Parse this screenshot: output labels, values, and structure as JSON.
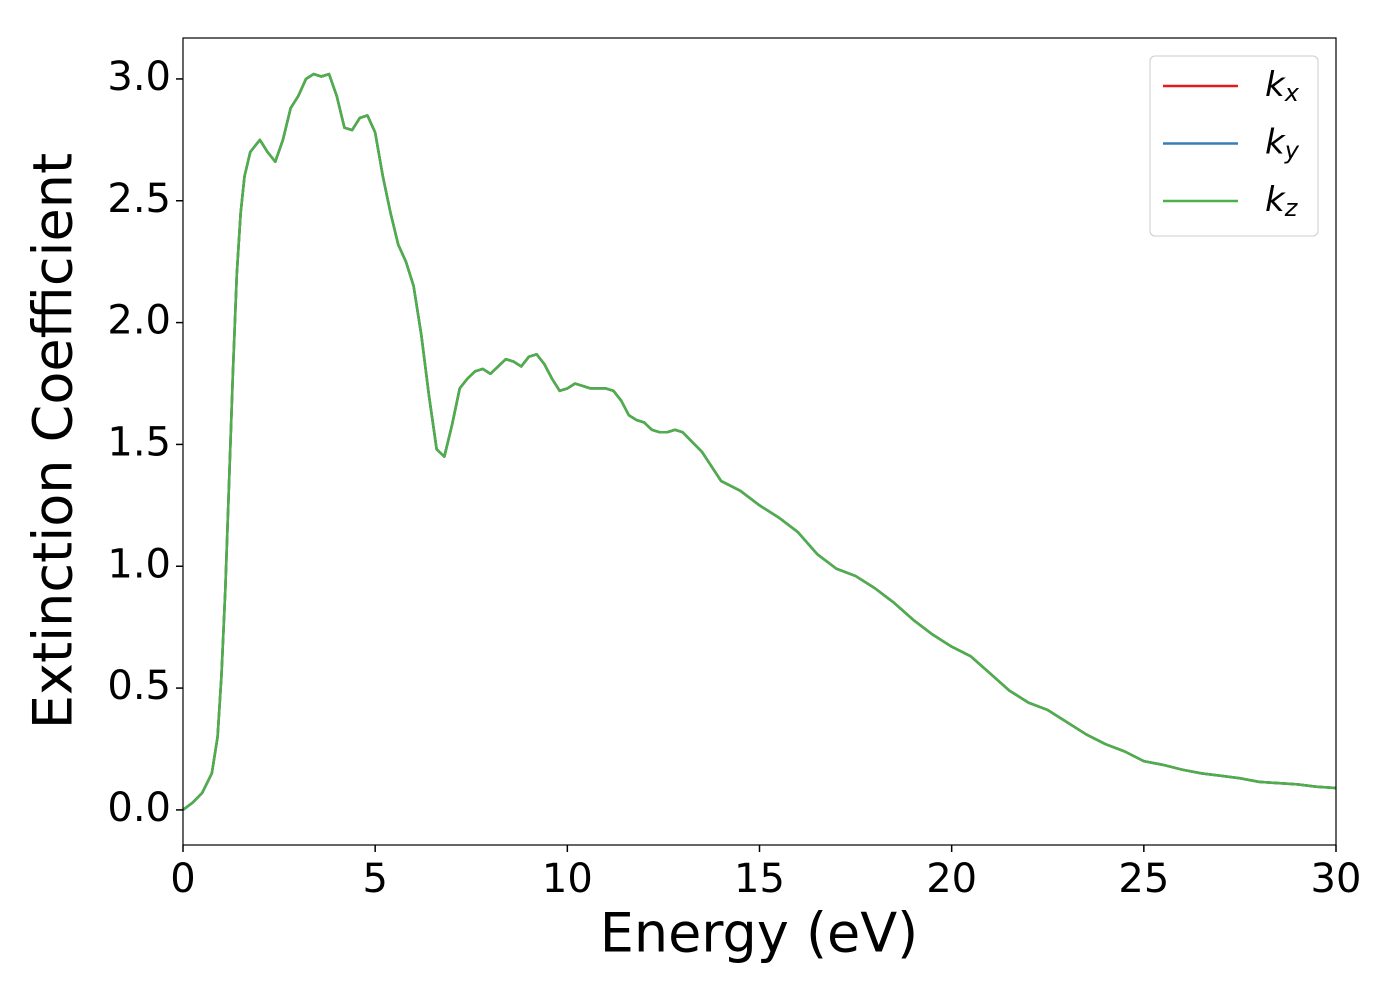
{
  "chart_data": {
    "type": "line",
    "x_label": "Energy (eV)",
    "y_label": "Extinction Coefficient",
    "x": [
      0,
      0.25,
      0.5,
      0.75,
      0.9,
      1.0,
      1.1,
      1.2,
      1.3,
      1.4,
      1.5,
      1.6,
      1.75,
      2.0,
      2.2,
      2.4,
      2.6,
      2.8,
      3.0,
      3.2,
      3.4,
      3.6,
      3.8,
      4.0,
      4.2,
      4.4,
      4.6,
      4.8,
      5.0,
      5.2,
      5.4,
      5.6,
      5.8,
      6.0,
      6.2,
      6.4,
      6.6,
      6.8,
      7.0,
      7.2,
      7.4,
      7.6,
      7.8,
      8.0,
      8.2,
      8.4,
      8.6,
      8.8,
      9.0,
      9.2,
      9.4,
      9.6,
      9.8,
      10.0,
      10.2,
      10.4,
      10.6,
      11.0,
      11.2,
      11.4,
      11.6,
      11.8,
      12.0,
      12.2,
      12.4,
      12.6,
      12.8,
      13.0,
      13.5,
      14.0,
      14.5,
      15.0,
      15.5,
      16.0,
      16.5,
      17.0,
      17.5,
      18.0,
      18.5,
      19.0,
      19.5,
      20.0,
      20.5,
      21.0,
      21.5,
      22.0,
      22.5,
      23.0,
      23.5,
      24.0,
      24.5,
      25.0,
      25.5,
      26.0,
      26.5,
      27.0,
      27.5,
      28.0,
      28.5,
      29.0,
      29.5,
      30.0
    ],
    "series": [
      {
        "name": "kx",
        "color": "#e41a1c",
        "values": [
          0.0,
          0.03,
          0.07,
          0.15,
          0.3,
          0.55,
          0.9,
          1.35,
          1.8,
          2.2,
          2.45,
          2.6,
          2.7,
          2.75,
          2.7,
          2.66,
          2.75,
          2.88,
          2.93,
          3.0,
          3.02,
          3.01,
          3.02,
          2.93,
          2.8,
          2.79,
          2.84,
          2.85,
          2.78,
          2.6,
          2.45,
          2.32,
          2.25,
          2.15,
          1.95,
          1.7,
          1.48,
          1.45,
          1.58,
          1.73,
          1.77,
          1.8,
          1.81,
          1.79,
          1.82,
          1.85,
          1.84,
          1.82,
          1.86,
          1.87,
          1.83,
          1.77,
          1.72,
          1.73,
          1.75,
          1.74,
          1.73,
          1.73,
          1.72,
          1.68,
          1.62,
          1.6,
          1.59,
          1.56,
          1.55,
          1.55,
          1.56,
          1.55,
          1.47,
          1.35,
          1.31,
          1.25,
          1.2,
          1.14,
          1.05,
          0.99,
          0.96,
          0.91,
          0.85,
          0.78,
          0.72,
          0.67,
          0.63,
          0.56,
          0.49,
          0.44,
          0.41,
          0.36,
          0.31,
          0.27,
          0.24,
          0.2,
          0.185,
          0.165,
          0.15,
          0.14,
          0.13,
          0.115,
          0.11,
          0.105,
          0.095,
          0.09
        ]
      },
      {
        "name": "ky",
        "color": "#377eb8",
        "values": [
          0.0,
          0.03,
          0.07,
          0.15,
          0.3,
          0.55,
          0.9,
          1.35,
          1.8,
          2.2,
          2.45,
          2.6,
          2.7,
          2.75,
          2.7,
          2.66,
          2.75,
          2.88,
          2.93,
          3.0,
          3.02,
          3.01,
          3.02,
          2.93,
          2.8,
          2.79,
          2.84,
          2.85,
          2.78,
          2.6,
          2.45,
          2.32,
          2.25,
          2.15,
          1.95,
          1.7,
          1.48,
          1.45,
          1.58,
          1.73,
          1.77,
          1.8,
          1.81,
          1.79,
          1.82,
          1.85,
          1.84,
          1.82,
          1.86,
          1.87,
          1.83,
          1.77,
          1.72,
          1.73,
          1.75,
          1.74,
          1.73,
          1.73,
          1.72,
          1.68,
          1.62,
          1.6,
          1.59,
          1.56,
          1.55,
          1.55,
          1.56,
          1.55,
          1.47,
          1.35,
          1.31,
          1.25,
          1.2,
          1.14,
          1.05,
          0.99,
          0.96,
          0.91,
          0.85,
          0.78,
          0.72,
          0.67,
          0.63,
          0.56,
          0.49,
          0.44,
          0.41,
          0.36,
          0.31,
          0.27,
          0.24,
          0.2,
          0.185,
          0.165,
          0.15,
          0.14,
          0.13,
          0.115,
          0.11,
          0.105,
          0.095,
          0.09
        ]
      },
      {
        "name": "kz",
        "color": "#4daf4a",
        "values": [
          0.0,
          0.03,
          0.07,
          0.15,
          0.3,
          0.55,
          0.9,
          1.35,
          1.8,
          2.2,
          2.45,
          2.6,
          2.7,
          2.75,
          2.7,
          2.66,
          2.75,
          2.88,
          2.93,
          3.0,
          3.02,
          3.01,
          3.02,
          2.93,
          2.8,
          2.79,
          2.84,
          2.85,
          2.78,
          2.6,
          2.45,
          2.32,
          2.25,
          2.15,
          1.95,
          1.7,
          1.48,
          1.45,
          1.58,
          1.73,
          1.77,
          1.8,
          1.81,
          1.79,
          1.82,
          1.85,
          1.84,
          1.82,
          1.86,
          1.87,
          1.83,
          1.77,
          1.72,
          1.73,
          1.75,
          1.74,
          1.73,
          1.73,
          1.72,
          1.68,
          1.62,
          1.6,
          1.59,
          1.56,
          1.55,
          1.55,
          1.56,
          1.55,
          1.47,
          1.35,
          1.31,
          1.25,
          1.2,
          1.14,
          1.05,
          0.99,
          0.96,
          0.91,
          0.85,
          0.78,
          0.72,
          0.67,
          0.63,
          0.56,
          0.49,
          0.44,
          0.41,
          0.36,
          0.31,
          0.27,
          0.24,
          0.2,
          0.185,
          0.165,
          0.15,
          0.14,
          0.13,
          0.115,
          0.11,
          0.105,
          0.095,
          0.09
        ]
      }
    ],
    "xlim": [
      0,
      30
    ],
    "xticks": [
      0,
      5,
      10,
      15,
      20,
      25,
      30
    ],
    "ylim": [
      -0.144,
      3.168
    ],
    "yticks": [
      {
        "value": 0,
        "label": "0.0"
      },
      {
        "value": 0.5,
        "label": "0.5"
      },
      {
        "value": 1,
        "label": "1.0"
      },
      {
        "value": 1.5,
        "label": "1.5"
      },
      {
        "value": 2,
        "label": "2.0"
      },
      {
        "value": 2.5,
        "label": "2.5"
      },
      {
        "value": 3,
        "label": "3.0"
      }
    ],
    "legend": "upper right",
    "grid": false
  }
}
